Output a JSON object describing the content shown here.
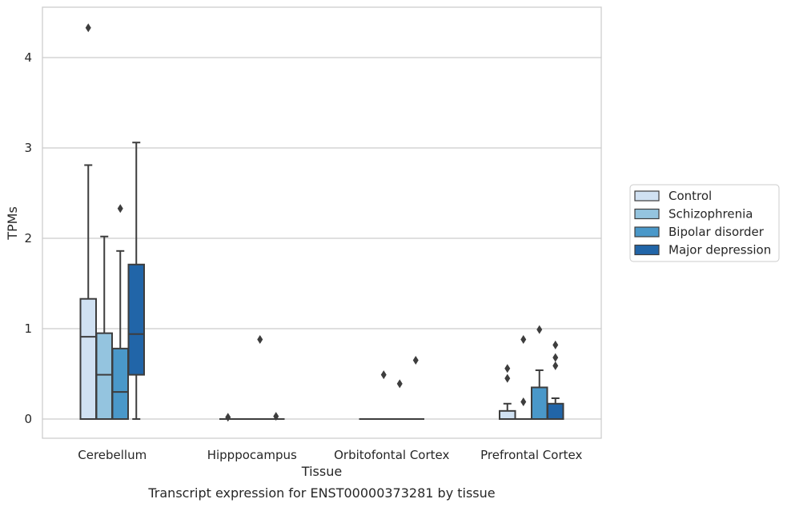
{
  "chart_data": {
    "type": "box",
    "xlabel": "Tissue",
    "ylabel": "TPMs",
    "caption": "Transcript expression for ENST00000373281 by tissue",
    "ylim": [
      -0.21,
      4.55
    ],
    "yticks": [
      0,
      1,
      2,
      3,
      4
    ],
    "grid": "horizontal",
    "legend_position": "right",
    "categories": [
      "Cerebellum",
      "Hipppocampus",
      "Orbitofontal Cortex",
      "Prefrontal Cortex"
    ],
    "series": [
      {
        "name": "Control",
        "color": "#d0e1f2",
        "boxes": [
          {
            "min": 0,
            "q1": 0,
            "median": 0.91,
            "q3": 1.33,
            "max": 2.81,
            "outliers": [
              4.33
            ]
          },
          {
            "min": 0,
            "q1": 0,
            "median": 0,
            "q3": 0,
            "max": 0,
            "outliers": [
              0.02
            ]
          },
          {
            "min": 0,
            "q1": 0,
            "median": 0,
            "q3": 0,
            "max": 0,
            "outliers": []
          },
          {
            "min": 0,
            "q1": 0,
            "median": 0,
            "q3": 0.09,
            "max": 0.17,
            "outliers": [
              0.45,
              0.56
            ]
          }
        ]
      },
      {
        "name": "Schizophrenia",
        "color": "#94c4df",
        "boxes": [
          {
            "min": 0,
            "q1": 0,
            "median": 0.49,
            "q3": 0.95,
            "max": 2.02,
            "outliers": []
          },
          {
            "min": 0,
            "q1": 0,
            "median": 0,
            "q3": 0,
            "max": 0,
            "outliers": []
          },
          {
            "min": 0,
            "q1": 0,
            "median": 0,
            "q3": 0,
            "max": 0,
            "outliers": [
              0.49
            ]
          },
          {
            "min": 0,
            "q1": 0,
            "median": 0,
            "q3": 0,
            "max": 0,
            "outliers": [
              0.19,
              0.88
            ]
          }
        ]
      },
      {
        "name": "Bipolar disorder",
        "color": "#4a98c9",
        "boxes": [
          {
            "min": 0,
            "q1": 0,
            "median": 0.3,
            "q3": 0.78,
            "max": 1.86,
            "outliers": [
              2.33
            ]
          },
          {
            "min": 0,
            "q1": 0,
            "median": 0,
            "q3": 0,
            "max": 0,
            "outliers": [
              0.88
            ]
          },
          {
            "min": 0,
            "q1": 0,
            "median": 0,
            "q3": 0,
            "max": 0,
            "outliers": [
              0.39
            ]
          },
          {
            "min": 0,
            "q1": 0,
            "median": 0,
            "q3": 0.35,
            "max": 0.54,
            "outliers": [
              0.99
            ]
          }
        ]
      },
      {
        "name": "Major depression",
        "color": "#2165a8",
        "boxes": [
          {
            "min": 0,
            "q1": 0.49,
            "median": 0.94,
            "q3": 1.71,
            "max": 3.06,
            "outliers": []
          },
          {
            "min": 0,
            "q1": 0,
            "median": 0,
            "q3": 0,
            "max": 0,
            "outliers": [
              0.03
            ]
          },
          {
            "min": 0,
            "q1": 0,
            "median": 0,
            "q3": 0,
            "max": 0,
            "outliers": [
              0.65
            ]
          },
          {
            "min": 0,
            "q1": 0,
            "median": 0,
            "q3": 0.17,
            "max": 0.23,
            "outliers": [
              0.59,
              0.68,
              0.82
            ]
          }
        ]
      }
    ]
  },
  "colors": {
    "grid": "#cccccc",
    "axes_edge": "#cccccc",
    "box_edge": "#3d3d3d"
  }
}
